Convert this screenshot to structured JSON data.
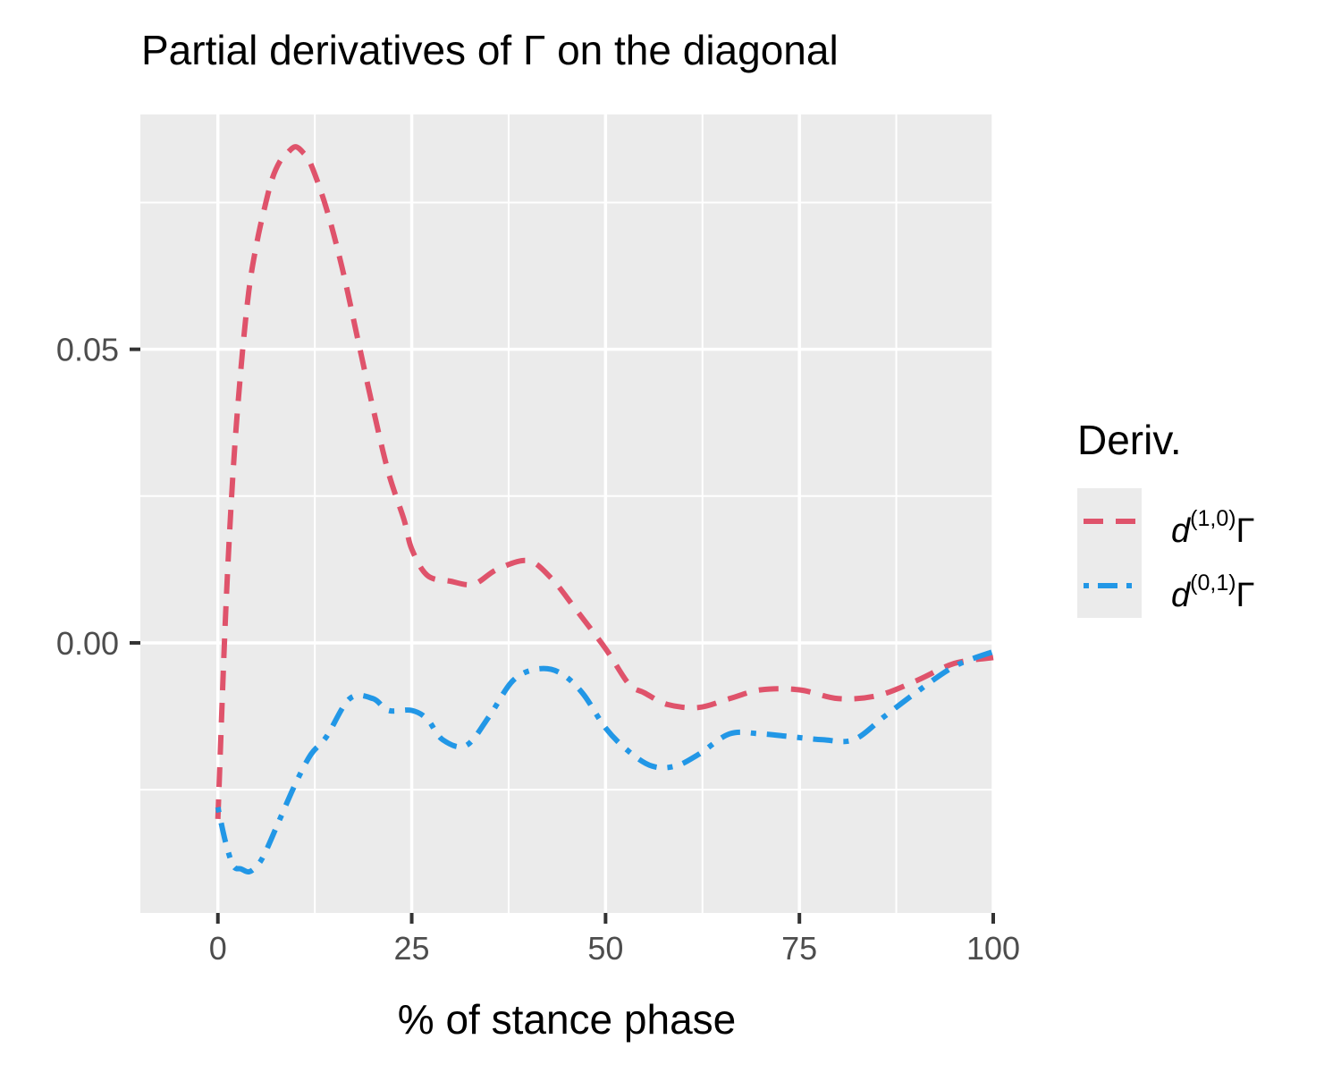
{
  "chart_data": {
    "type": "line",
    "title": "Partial derivatives of Γ on the diagonal",
    "xlabel": "% of stance phase",
    "ylabel": "",
    "xlim": [
      -10,
      100
    ],
    "ylim": [
      -0.046,
      0.09
    ],
    "x_ticks": [
      0,
      25,
      50,
      75,
      100
    ],
    "x_tick_labels": [
      "0",
      "25",
      "50",
      "75",
      "100"
    ],
    "y_ticks": [
      0.0,
      0.05
    ],
    "y_tick_labels": [
      "0.00",
      "0.05"
    ],
    "grid": true,
    "legend": {
      "title": "Deriv.",
      "position": "right"
    },
    "series": [
      {
        "legend": {
          "base": "d",
          "sup": "(1,0)",
          "tail": "Γ"
        },
        "color": "#DF536B",
        "line_style": "dashed",
        "x": [
          0,
          1,
          2,
          3,
          4,
          5,
          6,
          7,
          8,
          9,
          10,
          11,
          12,
          14,
          16,
          18,
          20,
          22,
          24,
          25,
          27,
          30,
          33,
          36,
          40,
          43,
          46,
          50,
          53,
          55,
          58,
          62,
          66,
          70,
          75,
          80,
          85,
          90,
          95,
          100
        ],
        "y": [
          -0.03,
          0.005,
          0.03,
          0.047,
          0.06,
          0.068,
          0.074,
          0.079,
          0.082,
          0.0835,
          0.0845,
          0.0835,
          0.0815,
          0.074,
          0.064,
          0.052,
          0.04,
          0.029,
          0.021,
          0.016,
          0.0115,
          0.0105,
          0.01,
          0.0125,
          0.014,
          0.011,
          0.006,
          -0.001,
          -0.007,
          -0.0085,
          -0.0105,
          -0.011,
          -0.0095,
          -0.008,
          -0.008,
          -0.0095,
          -0.009,
          -0.0065,
          -0.0035,
          -0.0025
        ]
      },
      {
        "legend": {
          "base": "d",
          "sup": "(0,1)",
          "tail": "Γ"
        },
        "color": "#2297E6",
        "line_style": "dotdash",
        "x": [
          0,
          1,
          2,
          3,
          4,
          5,
          6,
          8,
          10,
          12,
          14,
          17,
          20,
          22,
          25,
          27,
          29,
          32,
          35,
          38,
          41,
          44,
          47,
          50,
          53,
          56,
          59,
          62,
          66,
          70,
          74,
          78,
          82,
          86,
          90,
          95,
          100
        ],
        "y": [
          -0.028,
          -0.034,
          -0.038,
          -0.0385,
          -0.039,
          -0.038,
          -0.036,
          -0.03,
          -0.024,
          -0.019,
          -0.016,
          -0.0095,
          -0.0095,
          -0.0115,
          -0.0115,
          -0.013,
          -0.0165,
          -0.0175,
          -0.0125,
          -0.0065,
          -0.0045,
          -0.005,
          -0.0085,
          -0.0145,
          -0.0185,
          -0.021,
          -0.021,
          -0.019,
          -0.0155,
          -0.0155,
          -0.016,
          -0.0165,
          -0.0165,
          -0.0125,
          -0.0085,
          -0.004,
          -0.0015
        ]
      }
    ]
  }
}
